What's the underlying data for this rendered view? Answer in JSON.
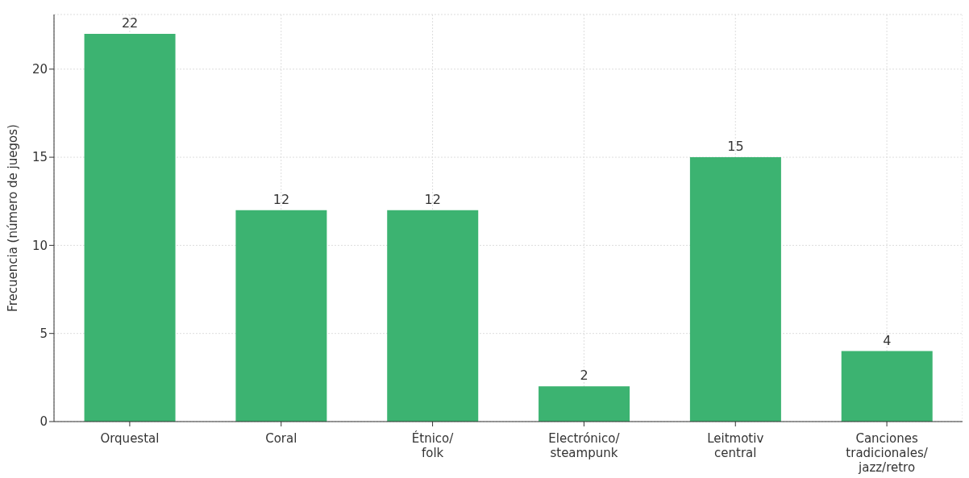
{
  "chart_data": {
    "type": "bar",
    "ylabel": "Frecuencia (número de juegos)",
    "categories": [
      "Orquestal",
      "Coral",
      "Étnico/\nfolk",
      "Electrónico/\nsteampunk",
      "Leitmotiv\ncentral",
      "Canciones\ntradicionales/\njazz/retro"
    ],
    "values": [
      22,
      12,
      12,
      2,
      15,
      4
    ],
    "color": "#3cb371",
    "ylim": [
      0,
      23.1
    ],
    "yticks": [
      0,
      5,
      10,
      15,
      20
    ],
    "grid": true,
    "data_labels": true
  }
}
